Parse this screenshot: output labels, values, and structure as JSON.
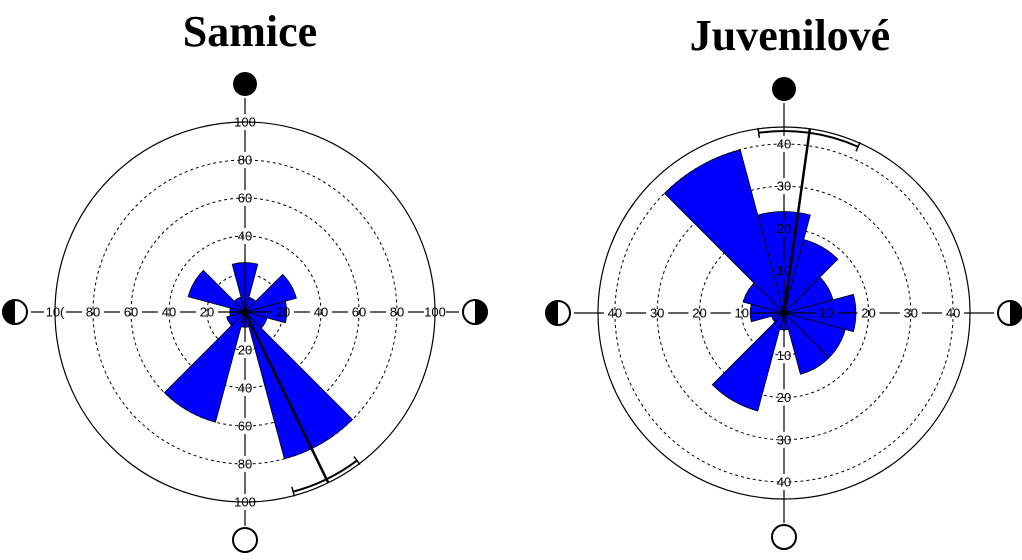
{
  "chart_data": [
    {
      "type": "rose",
      "title": "Samice",
      "rmax": 100,
      "rings": [
        20,
        40,
        60,
        80
      ],
      "radial_tick_labels": {
        "up": [
          "40",
          "60",
          "80",
          "100"
        ],
        "down": [
          "20",
          "40",
          "60",
          "80",
          "100"
        ],
        "left": [
          "20",
          "40",
          "60",
          "80",
          "10("
        ],
        "right": [
          "20",
          "40",
          "60",
          "80",
          "100"
        ]
      },
      "sectors": [
        {
          "angle": 0,
          "value": 26
        },
        {
          "angle": 30,
          "value": 8
        },
        {
          "angle": 60,
          "value": 28
        },
        {
          "angle": 90,
          "value": 22
        },
        {
          "angle": 120,
          "value": 12
        },
        {
          "angle": 150,
          "value": 80
        },
        {
          "angle": 180,
          "value": 8
        },
        {
          "angle": 210,
          "value": 60
        },
        {
          "angle": 240,
          "value": 10
        },
        {
          "angle": 270,
          "value": 8
        },
        {
          "angle": 300,
          "value": 31
        },
        {
          "angle": 330,
          "value": 8
        }
      ],
      "mean_angle": 154,
      "mean_length": 100,
      "ci_arc": [
        143,
        165
      ],
      "moon_phases": {
        "top": "new-moon",
        "right": "first-quarter",
        "bottom": "full-moon",
        "left": "last-quarter"
      }
    },
    {
      "type": "rose",
      "title": "Juvenilové",
      "rmax": 44,
      "rings": [
        10,
        20,
        30,
        40
      ],
      "radial_tick_labels": {
        "up": [
          "10",
          "20",
          "30",
          "40"
        ],
        "down": [
          "10",
          "20",
          "30",
          "40"
        ],
        "left": [
          "10",
          "20",
          "30",
          "40"
        ],
        "right": [
          "10",
          "20",
          "30",
          "40"
        ]
      },
      "sectors": [
        {
          "angle": 0,
          "value": 24
        },
        {
          "angle": 30,
          "value": 18
        },
        {
          "angle": 60,
          "value": 12
        },
        {
          "angle": 90,
          "value": 17
        },
        {
          "angle": 120,
          "value": 15
        },
        {
          "angle": 150,
          "value": 15
        },
        {
          "angle": 180,
          "value": 4
        },
        {
          "angle": 210,
          "value": 24
        },
        {
          "angle": 240,
          "value": 3
        },
        {
          "angle": 270,
          "value": 8
        },
        {
          "angle": 300,
          "value": 10
        },
        {
          "angle": 330,
          "value": 40
        }
      ],
      "mean_angle": 8,
      "mean_length": 44,
      "ci_arc": [
        352,
        24
      ],
      "moon_phases": {
        "top": "new-moon",
        "right": "first-quarter",
        "bottom": "full-moon",
        "left": "last-quarter"
      }
    }
  ]
}
